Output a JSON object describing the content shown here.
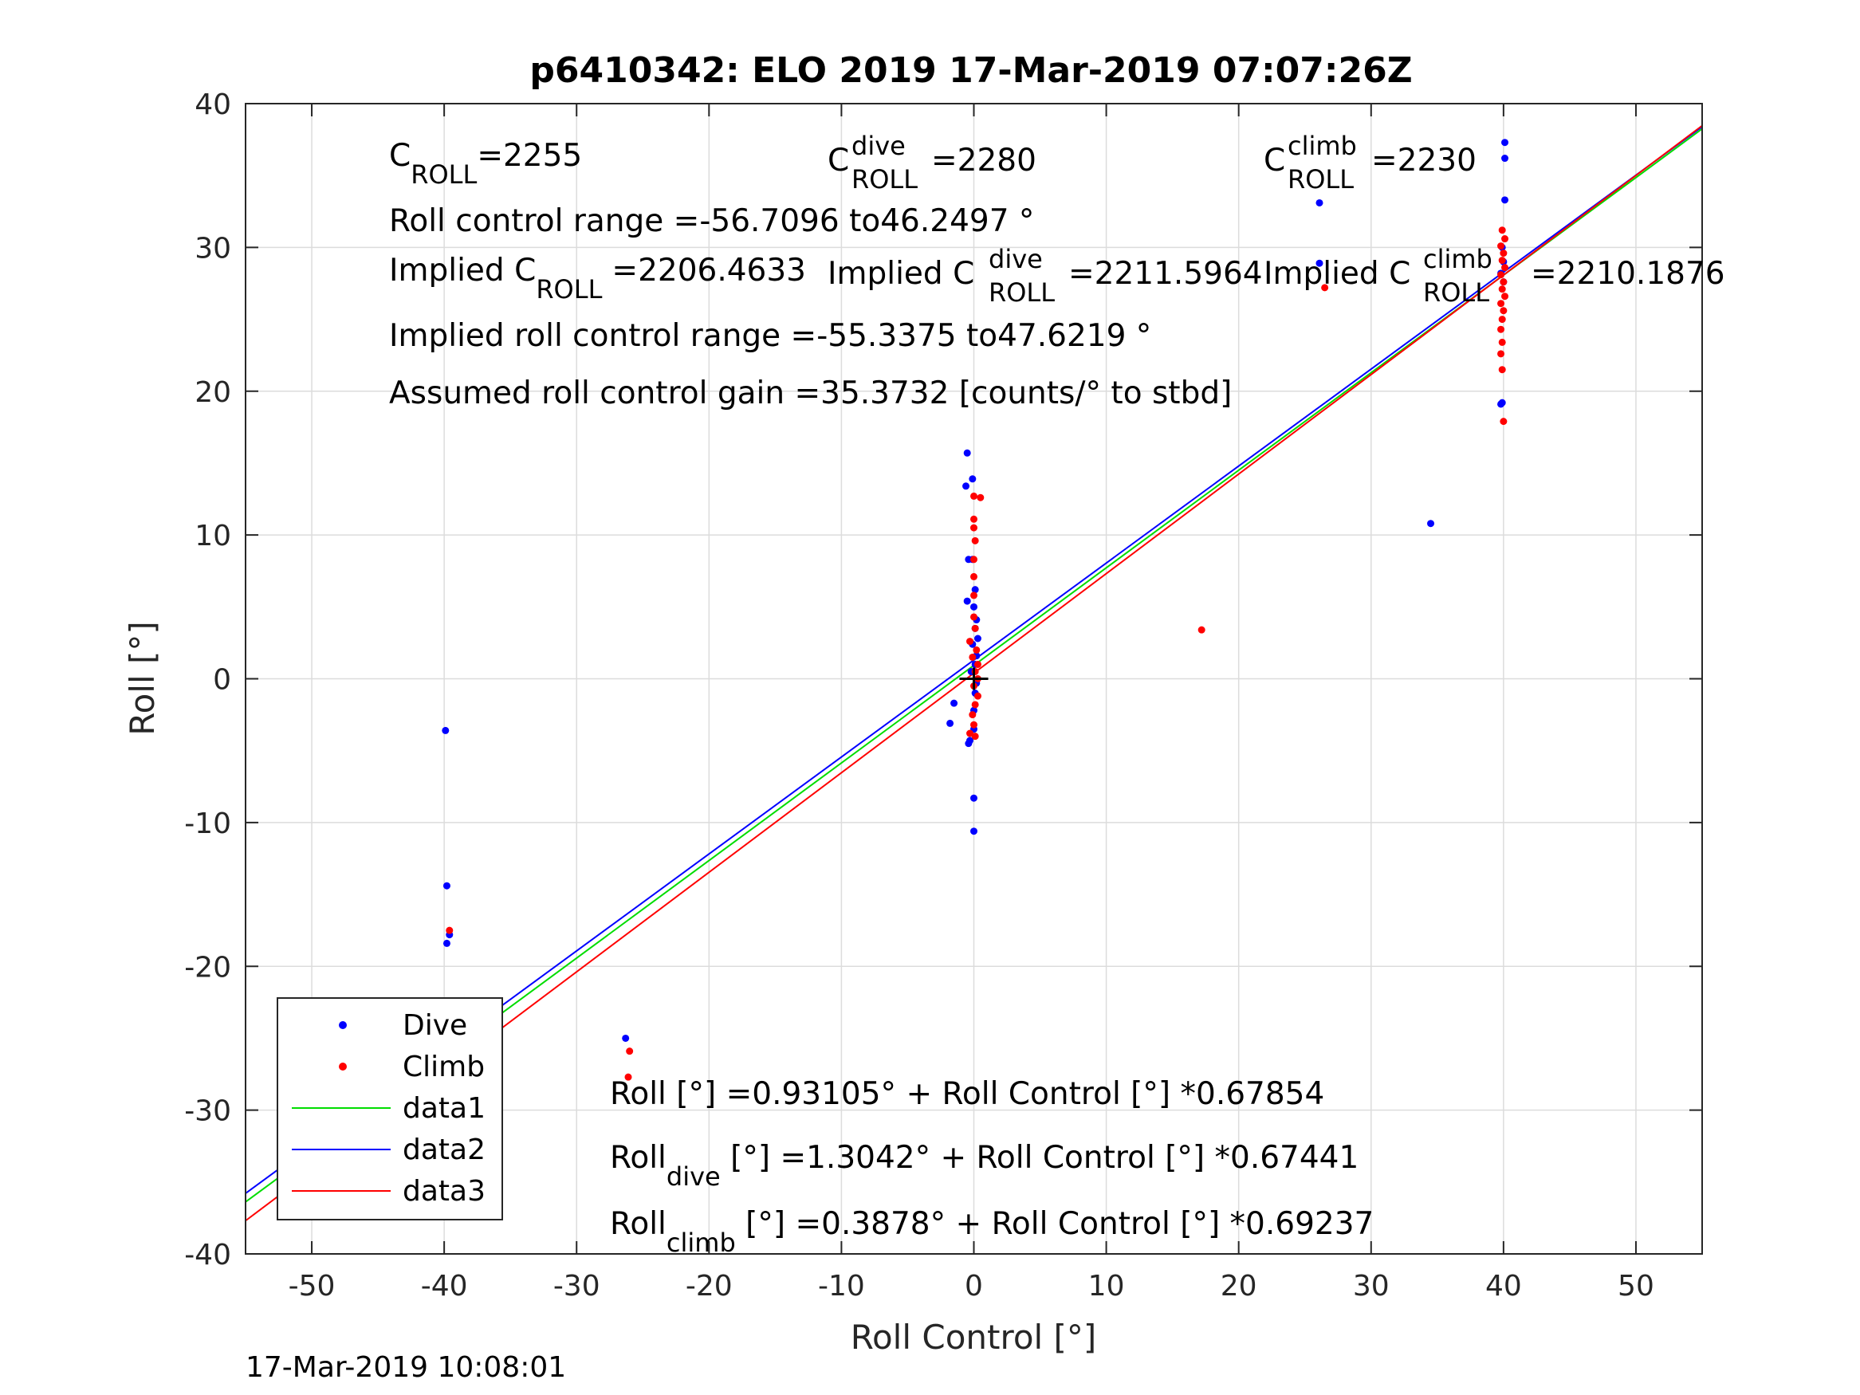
{
  "figure": {
    "stamp": "17-Mar-2019 10:08:01"
  },
  "chart_data": {
    "type": "scatter",
    "title": "p6410342: ELO 2019 17-Mar-2019 07:07:26Z",
    "xlabel": "Roll Control [°]",
    "ylabel": "Roll [°]",
    "xlim": [
      -55,
      55
    ],
    "ylim": [
      -40,
      40
    ],
    "xticks": [
      -50,
      -40,
      -30,
      -20,
      -10,
      0,
      10,
      20,
      30,
      40,
      50
    ],
    "yticks": [
      -40,
      -30,
      -20,
      -10,
      0,
      10,
      20,
      30,
      40
    ],
    "grid": true,
    "legend_position": "bottom-left",
    "colors": {
      "dive": "#0000ff",
      "climb": "#ff0000",
      "data1": "#00dd00",
      "data2": "#0000ff",
      "data3": "#ff0000",
      "origin": "#000000"
    },
    "series": [
      {
        "name": "Dive",
        "kind": "points",
        "color": "#0000ff",
        "points": [
          [
            -39.9,
            -3.6
          ],
          [
            -39.8,
            -14.4
          ],
          [
            -39.6,
            -17.8
          ],
          [
            -39.8,
            -18.4
          ],
          [
            -39.9,
            -23.2
          ],
          [
            -39.8,
            -24.3
          ],
          [
            -39.9,
            -25.0
          ],
          [
            -39.7,
            -26.0
          ],
          [
            -39.9,
            -26.6
          ],
          [
            -39.8,
            -27.2
          ],
          [
            -39.9,
            -28.0
          ],
          [
            -39.8,
            -29.6
          ],
          [
            -39.9,
            -31.0
          ],
          [
            -26.3,
            -25.0
          ],
          [
            -0.5,
            15.7
          ],
          [
            -0.6,
            13.4
          ],
          [
            -0.1,
            13.9
          ],
          [
            -0.4,
            8.3
          ],
          [
            -0.1,
            8.3
          ],
          [
            0.1,
            6.2
          ],
          [
            -0.5,
            5.4
          ],
          [
            0.0,
            5.0
          ],
          [
            0.2,
            4.1
          ],
          [
            0.1,
            3.5
          ],
          [
            0.3,
            2.8
          ],
          [
            -0.1,
            2.4
          ],
          [
            0.2,
            1.6
          ],
          [
            0.1,
            1.0
          ],
          [
            -0.2,
            0.5
          ],
          [
            0.2,
            -0.3
          ],
          [
            0.1,
            -1.0
          ],
          [
            -1.5,
            -1.7
          ],
          [
            0.0,
            -2.2
          ],
          [
            -1.8,
            -3.1
          ],
          [
            0.0,
            -3.5
          ],
          [
            -0.3,
            -4.3
          ],
          [
            -0.4,
            -4.5
          ],
          [
            0.0,
            -8.3
          ],
          [
            0.0,
            -10.6
          ],
          [
            26.1,
            33.1
          ],
          [
            26.1,
            28.9
          ],
          [
            34.5,
            10.8
          ],
          [
            40.1,
            37.3
          ],
          [
            40.1,
            36.2
          ],
          [
            40.1,
            33.3
          ],
          [
            39.9,
            30.0
          ],
          [
            40.0,
            29.0
          ],
          [
            39.8,
            28.2
          ],
          [
            40.0,
            27.6
          ],
          [
            39.9,
            19.2
          ],
          [
            39.8,
            19.1
          ]
        ]
      },
      {
        "name": "Climb",
        "kind": "points",
        "color": "#ff0000",
        "points": [
          [
            -39.6,
            -17.5
          ],
          [
            -39.9,
            -24.7
          ],
          [
            -39.8,
            -25.5
          ],
          [
            -39.9,
            -26.4
          ],
          [
            -39.8,
            -27.0
          ],
          [
            -39.9,
            -27.6
          ],
          [
            -39.8,
            -28.2
          ],
          [
            -39.9,
            -29.2
          ],
          [
            -26.0,
            -25.9
          ],
          [
            -26.1,
            -27.7
          ],
          [
            0.0,
            12.7
          ],
          [
            0.5,
            12.6
          ],
          [
            0.0,
            11.1
          ],
          [
            0.0,
            10.5
          ],
          [
            0.1,
            9.6
          ],
          [
            0.0,
            8.3
          ],
          [
            0.0,
            7.1
          ],
          [
            0.0,
            5.8
          ],
          [
            0.0,
            4.3
          ],
          [
            0.1,
            3.5
          ],
          [
            -0.3,
            2.6
          ],
          [
            0.2,
            2.0
          ],
          [
            -0.1,
            1.5
          ],
          [
            0.3,
            1.0
          ],
          [
            0.1,
            0.5
          ],
          [
            0.3,
            0.0
          ],
          [
            0.0,
            -0.5
          ],
          [
            0.3,
            -1.2
          ],
          [
            0.1,
            -1.8
          ],
          [
            -0.1,
            -2.5
          ],
          [
            0.0,
            -3.2
          ],
          [
            -0.3,
            -3.8
          ],
          [
            0.1,
            -4.0
          ],
          [
            17.2,
            3.4
          ],
          [
            26.5,
            27.2
          ],
          [
            39.9,
            31.2
          ],
          [
            40.1,
            30.6
          ],
          [
            39.8,
            30.1
          ],
          [
            40.0,
            29.6
          ],
          [
            39.9,
            29.1
          ],
          [
            40.1,
            28.6
          ],
          [
            39.8,
            28.1
          ],
          [
            40.0,
            27.6
          ],
          [
            39.9,
            27.1
          ],
          [
            40.1,
            26.6
          ],
          [
            39.8,
            26.1
          ],
          [
            40.0,
            25.6
          ],
          [
            39.9,
            25.0
          ],
          [
            39.8,
            24.3
          ],
          [
            39.9,
            23.4
          ],
          [
            39.8,
            22.6
          ],
          [
            39.9,
            21.5
          ],
          [
            40.0,
            17.9
          ]
        ]
      },
      {
        "name": "data1",
        "kind": "line",
        "color": "#00dd00",
        "intercept": 0.93105,
        "slope": 0.67854
      },
      {
        "name": "data2",
        "kind": "line",
        "color": "#0000ff",
        "intercept": 1.3042,
        "slope": 0.67441
      },
      {
        "name": "data3",
        "kind": "line",
        "color": "#ff0000",
        "intercept": 0.3878,
        "slope": 0.69237
      }
    ],
    "annotations": {
      "croll": {
        "main": "C",
        "sub": "ROLL",
        "value": "=2255"
      },
      "croll_dive": {
        "main": "C",
        "sup": "dive",
        "sub": "ROLL",
        "value": "=2280"
      },
      "croll_climb": {
        "main": "C",
        "sup": "climb",
        "sub": "ROLL",
        "value": "=2230"
      },
      "range": "Roll control range =-56.7096 to46.2497 °",
      "implied_croll": {
        "prefix": "Implied C",
        "sub": "ROLL",
        "value": "=2206.4633"
      },
      "implied_croll_dive": {
        "prefix": "Implied C",
        "sup": "dive",
        "sub": "ROLL",
        "value": "=2211.5964"
      },
      "implied_croll_climb": {
        "prefix": "Implied C",
        "sup": "climb",
        "sub": "ROLL",
        "value": "=2210.1876"
      },
      "implied_range": "Implied roll control range =-55.3375 to47.6219 °",
      "gain": "Assumed roll control gain =35.3732 [counts/° to stbd]",
      "fit_all": "Roll [°] =0.93105° + Roll Control [°] *0.67854",
      "fit_dive": {
        "main": "Roll",
        "sub": "dive",
        "rest": " [°] =1.3042° + Roll Control [°] *0.67441"
      },
      "fit_climb": {
        "main": "Roll",
        "sub": "climb",
        "rest": " [°] =0.3878° + Roll Control [°] *0.69237"
      }
    }
  }
}
